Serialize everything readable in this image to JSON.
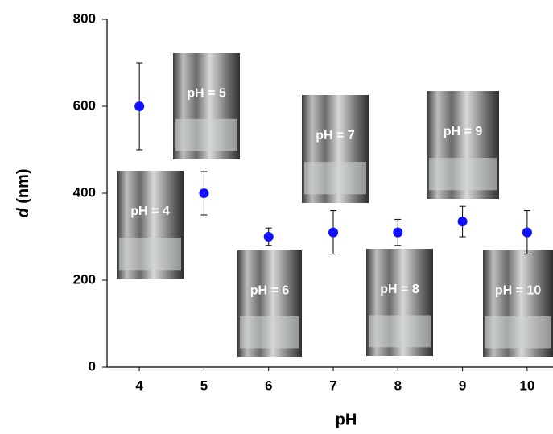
{
  "chart_data": {
    "type": "scatter",
    "xlabel": "pH",
    "ylabel": [
      "d",
      "(nm)"
    ],
    "x": [
      4,
      5,
      6,
      7,
      8,
      9,
      10
    ],
    "y": [
      600,
      400,
      300,
      310,
      310,
      335,
      310
    ],
    "yerr": [
      100,
      50,
      20,
      50,
      30,
      35,
      50
    ],
    "color": "#1010ff",
    "xlim": [
      3.5,
      10.4
    ],
    "xticks": [
      4,
      5,
      6,
      7,
      8,
      9,
      10
    ],
    "ylim": [
      0,
      800
    ],
    "yticks": [
      0,
      200,
      400,
      600,
      800
    ],
    "annotations": [
      "pH = 4",
      "pH = 5",
      "pH = 6",
      "pH = 7",
      "pH = 8",
      "pH = 9",
      "pH = 10"
    ]
  }
}
